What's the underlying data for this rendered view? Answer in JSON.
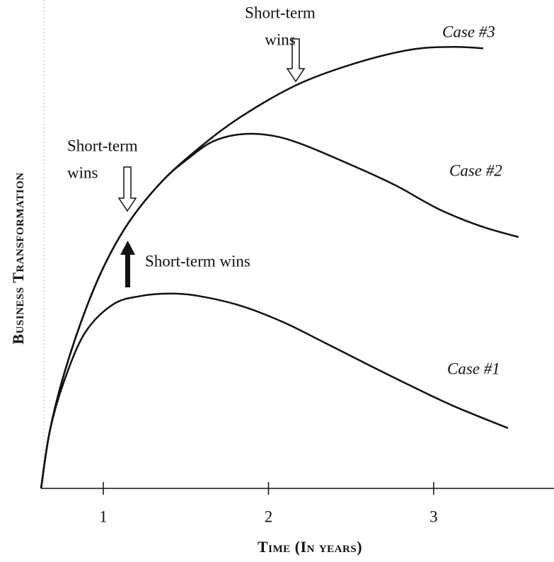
{
  "chart_data": {
    "type": "line",
    "xlabel": "Time (In years)",
    "ylabel": "Business Transformation",
    "xlim": [
      0.62,
      3.72
    ],
    "xticks": [
      1,
      2,
      3
    ],
    "ylim": [
      0,
      100
    ],
    "yticks": [],
    "series": [
      {
        "name": "Case #1",
        "color": "#111111",
        "x": [
          0.623,
          0.675,
          0.76,
          0.889,
          1.06,
          1.231,
          1.403,
          1.574,
          1.831,
          2.088,
          2.345,
          2.602,
          2.859,
          3.116,
          3.45
        ],
        "values": [
          0,
          12.1,
          22.7,
          33.3,
          39.4,
          41.2,
          41.7,
          41.2,
          39.1,
          35.6,
          31.1,
          26.5,
          22.0,
          17.7,
          12.9
        ]
      },
      {
        "name": "Case #2",
        "color": "#111111",
        "x": [
          0.623,
          0.675,
          0.76,
          0.889,
          1.017,
          1.167,
          1.36,
          1.51,
          1.66,
          1.831,
          2.024,
          2.216,
          2.516,
          2.773,
          3.03,
          3.287,
          3.514
        ],
        "values": [
          0,
          12.1,
          24.2,
          37.9,
          48.5,
          57.6,
          65.9,
          70.5,
          74.2,
          75.8,
          75.5,
          73.5,
          69.0,
          64.8,
          59.8,
          56.1,
          53.8
        ]
      },
      {
        "name": "Case #3",
        "color": "#111111",
        "x": [
          0.623,
          0.675,
          0.76,
          0.889,
          1.017,
          1.167,
          1.36,
          1.574,
          1.831,
          2.173,
          2.516,
          2.859,
          3.116,
          3.3
        ],
        "values": [
          0,
          12.1,
          24.2,
          37.9,
          48.5,
          57.6,
          65.9,
          72.7,
          79.5,
          86.4,
          90.9,
          93.9,
          94.5,
          94.2
        ]
      }
    ],
    "annotations": [
      {
        "lines": [
          "Short-term",
          "wins"
        ]
      },
      {
        "lines": [
          "Short-term",
          "wins"
        ]
      },
      {
        "lines": [
          "Short-term wins"
        ]
      }
    ]
  }
}
